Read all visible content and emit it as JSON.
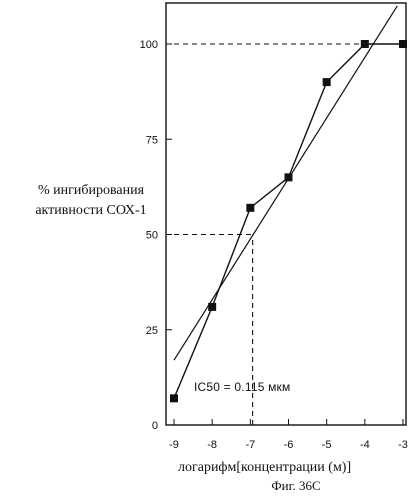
{
  "labels": {
    "ylabel_line1": "% ингибирования",
    "ylabel_line2": "активности СОХ-1",
    "xlabel": "логарифм[концентрации (м)]",
    "figure_caption": "Фиг. 36С",
    "annotation": "IC50 = 0.115 мкм"
  },
  "chart_data": {
    "type": "line",
    "title": "",
    "xlabel": "логарифм[концентрации (м)]",
    "ylabel": "% ингибирования активности СОХ-1",
    "xlim": [
      -9,
      -3
    ],
    "ylim": [
      0,
      110
    ],
    "xticks": [
      -9,
      -8,
      -7,
      -6,
      -5,
      -4,
      -3
    ],
    "yticks": [
      0,
      25,
      50,
      75,
      100
    ],
    "grid": false,
    "series": [
      {
        "style": "markers-connected",
        "x": [
          -9,
          -8,
          -7,
          -6,
          -5,
          -4,
          -3
        ],
        "y": [
          7,
          31,
          57,
          65,
          90,
          100,
          100
        ]
      },
      {
        "style": "fit-line",
        "x": [
          -9,
          -3.15
        ],
        "y": [
          17,
          110
        ]
      }
    ],
    "reference_lines": [
      {
        "orientation": "horizontal",
        "y": 100,
        "x_from": -9,
        "x_to": -3
      },
      {
        "orientation": "horizontal",
        "y": 50,
        "x_from": -9,
        "x_to": -6.94
      },
      {
        "orientation": "vertical",
        "x": -6.94,
        "y_from": 0,
        "y_to": 50
      }
    ],
    "annotation": {
      "text": "IC50 = 0.115 мкм",
      "x": -6.94,
      "y": 10
    }
  }
}
